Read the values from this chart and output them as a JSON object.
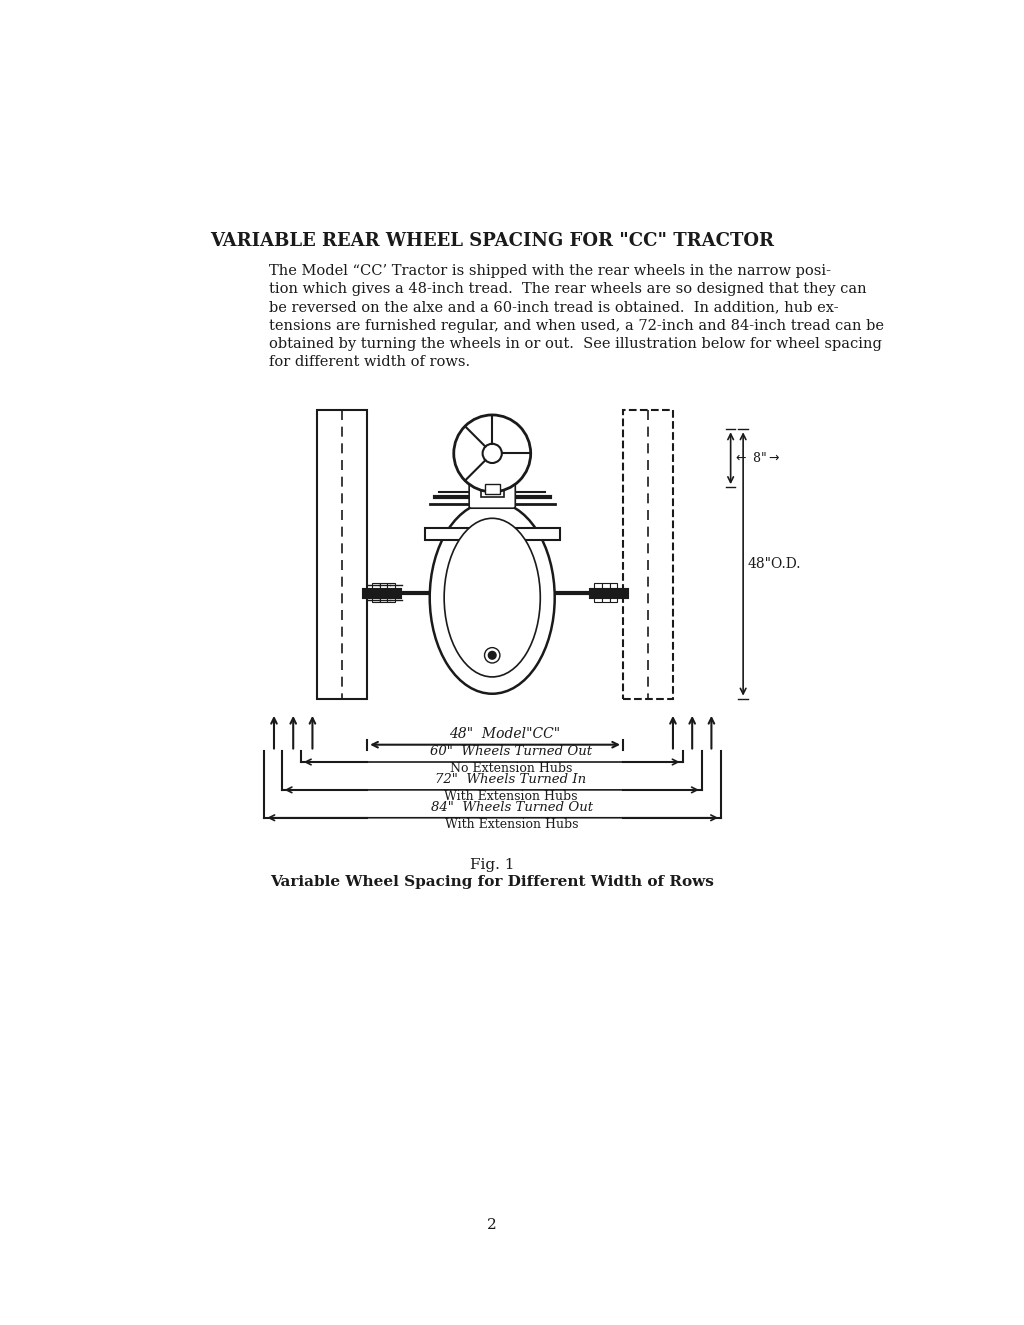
{
  "title": "VARIABLE REAR WHEEL SPACING FOR \"CC\" TRACTOR",
  "body_text": [
    "The Model “CC’ Tractor is shipped with the rear wheels in the narrow posi-",
    "tion which gives a 48-inch tread.  The rear wheels are so designed that they can",
    "be reversed on the alxe and a 60-inch tread is obtained.  In addition, hub ex-",
    "tensions are furnished regular, and when used, a 72-inch and 84-inch tread can be",
    "obtained by turning the wheels in or out.  See illustration below for wheel spacing",
    "for different width of rows."
  ],
  "fig_caption_1": "Fig. 1",
  "fig_caption_2": "Variable Wheel Spacing for Different Width of Rows",
  "page_number": "2",
  "bg_color": "#ffffff",
  "line_color": "#1a1a1a",
  "text_color": "#1a1a1a"
}
